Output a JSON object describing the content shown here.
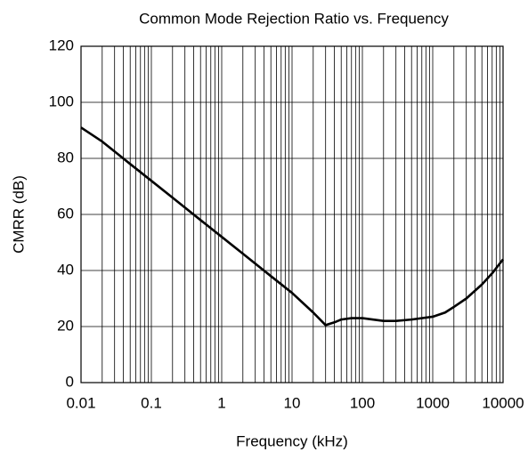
{
  "chart_data": {
    "type": "line",
    "title": "Common Mode Rejection Ratio vs. Frequency",
    "x_label": "Frequency (kHz)",
    "y_label": "CMRR (dB)",
    "x_scale": "log",
    "grid": true,
    "minor_grid": true,
    "xlim": [
      0.01,
      10000
    ],
    "xticks": [
      0.01,
      0.1,
      1,
      10,
      100,
      1000,
      10000
    ],
    "ylim": [
      0,
      120
    ],
    "yticks": [
      0,
      20,
      40,
      60,
      80,
      100,
      120
    ],
    "series": [
      {
        "name": "CMRR",
        "color": "#000000",
        "x": [
          0.01,
          0.02,
          0.05,
          0.1,
          0.2,
          0.5,
          1,
          2,
          5,
          10,
          20,
          30,
          40,
          50,
          70,
          100,
          200,
          300,
          500,
          1000,
          1500,
          2000,
          3000,
          5000,
          7000,
          10000
        ],
        "values": [
          91,
          86,
          78,
          72,
          66,
          58,
          52,
          46,
          38,
          32,
          25,
          20.5,
          21.5,
          22.5,
          23,
          23,
          22,
          22,
          22.5,
          23.5,
          25,
          27,
          30,
          35,
          39,
          44
        ]
      }
    ]
  }
}
